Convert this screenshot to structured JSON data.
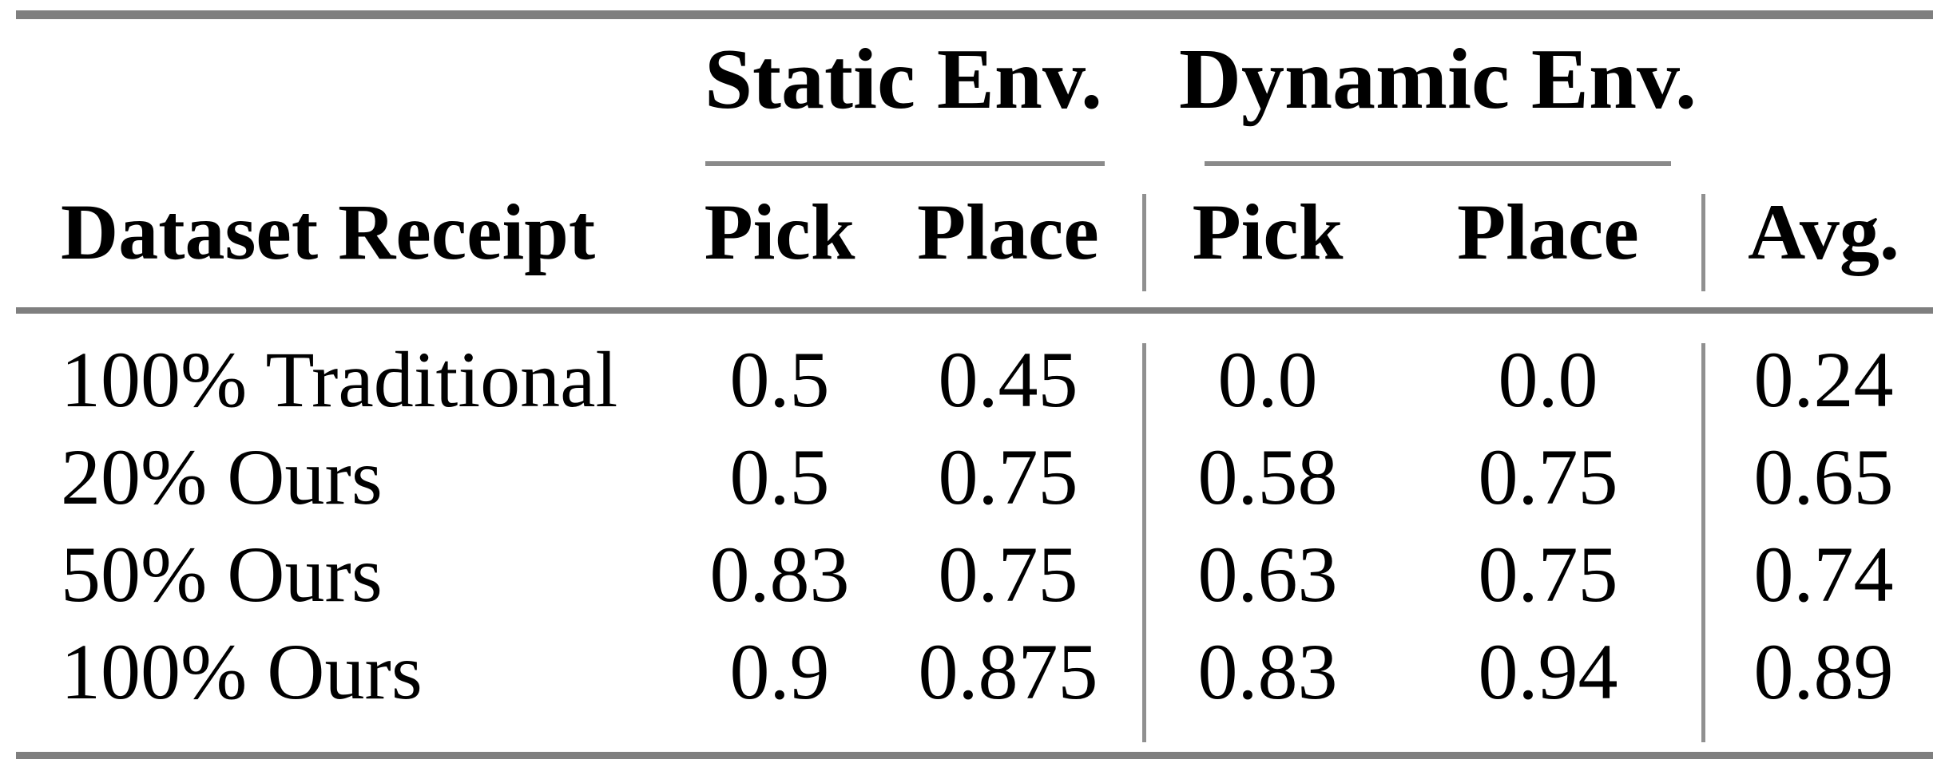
{
  "table": {
    "groups": [
      {
        "label": "Static Env."
      },
      {
        "label": "Dynamic Env."
      }
    ],
    "columns": [
      "Dataset Receipt",
      "Pick",
      "Place",
      "Pick",
      "Place",
      "Avg."
    ],
    "rows": [
      {
        "label": "100% Traditional",
        "values": [
          "0.5",
          "0.45",
          "0.0",
          "0.0",
          "0.24"
        ]
      },
      {
        "label": "20% Ours",
        "values": [
          "0.5",
          "0.75",
          "0.58",
          "0.75",
          "0.65"
        ]
      },
      {
        "label": "50% Ours",
        "values": [
          "0.83",
          "0.75",
          "0.63",
          "0.75",
          "0.74"
        ]
      },
      {
        "label": "100% Ours",
        "values": [
          "0.9",
          "0.875",
          "0.83",
          "0.94",
          "0.89"
        ]
      }
    ],
    "colors": {
      "heavy_rule": "#7f7f7f",
      "light_rule": "#8a8a8a",
      "vertical_rule": "#909090",
      "text": "#000000",
      "background": "#ffffff"
    }
  }
}
